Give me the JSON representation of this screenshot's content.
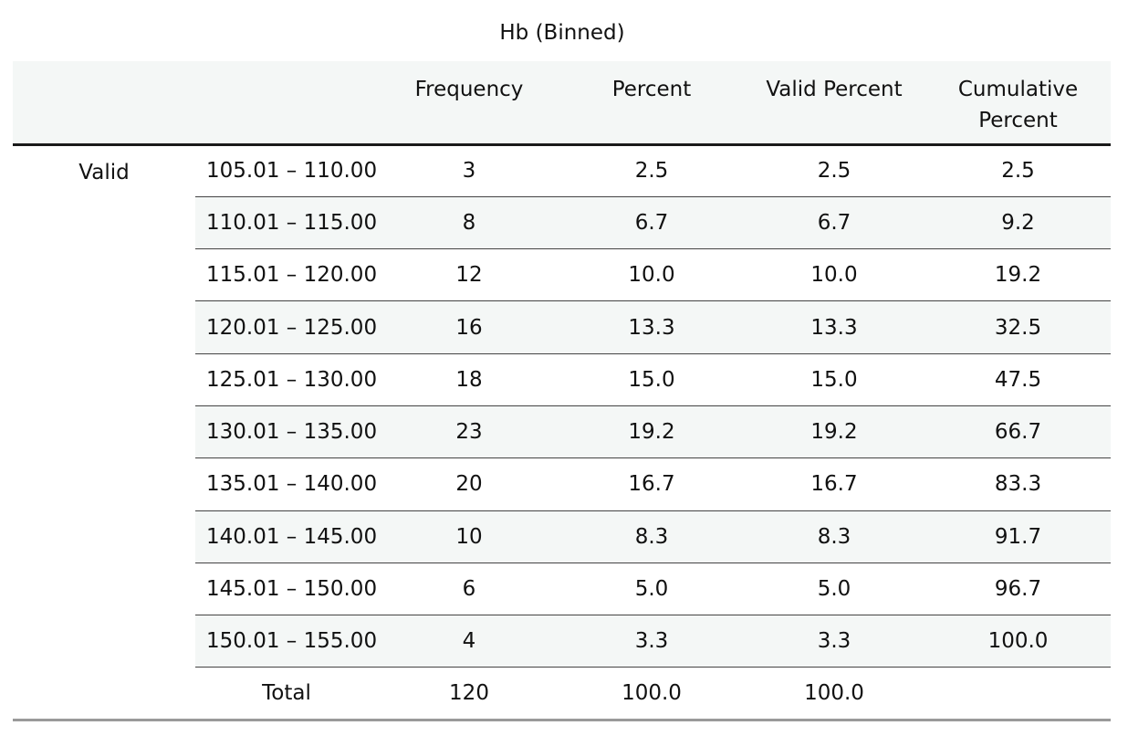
{
  "chart_data": {
    "type": "table",
    "title": "Hb (Binned)",
    "columns": [
      "",
      "",
      "Frequency",
      "Percent",
      "Valid Percent",
      "Cumulative Percent"
    ],
    "column_lines": {
      "frequency": "Frequency",
      "percent": "Percent",
      "valid_percent": "Valid Percent",
      "cumulative_line1": "Cumulative",
      "cumulative_line2": "Percent"
    },
    "group_label": "Valid",
    "rows": [
      {
        "range": "105.01 – 110.00",
        "frequency": "3",
        "percent": "2.5",
        "valid_percent": "2.5",
        "cumulative_percent": "2.5"
      },
      {
        "range": "110.01 – 115.00",
        "frequency": "8",
        "percent": "6.7",
        "valid_percent": "6.7",
        "cumulative_percent": "9.2"
      },
      {
        "range": "115.01 – 120.00",
        "frequency": "12",
        "percent": "10.0",
        "valid_percent": "10.0",
        "cumulative_percent": "19.2"
      },
      {
        "range": "120.01 – 125.00",
        "frequency": "16",
        "percent": "13.3",
        "valid_percent": "13.3",
        "cumulative_percent": "32.5"
      },
      {
        "range": "125.01 – 130.00",
        "frequency": "18",
        "percent": "15.0",
        "valid_percent": "15.0",
        "cumulative_percent": "47.5"
      },
      {
        "range": "130.01 – 135.00",
        "frequency": "23",
        "percent": "19.2",
        "valid_percent": "19.2",
        "cumulative_percent": "66.7"
      },
      {
        "range": "135.01 – 140.00",
        "frequency": "20",
        "percent": "16.7",
        "valid_percent": "16.7",
        "cumulative_percent": "83.3"
      },
      {
        "range": "140.01 – 145.00",
        "frequency": "10",
        "percent": "8.3",
        "valid_percent": "8.3",
        "cumulative_percent": "91.7"
      },
      {
        "range": "145.01 – 150.00",
        "frequency": "6",
        "percent": "5.0",
        "valid_percent": "5.0",
        "cumulative_percent": "96.7"
      },
      {
        "range": "150.01 – 155.00",
        "frequency": "4",
        "percent": "3.3",
        "valid_percent": "3.3",
        "cumulative_percent": "100.0"
      }
    ],
    "total": {
      "label": "Total",
      "frequency": "120",
      "percent": "100.0",
      "valid_percent": "100.0",
      "cumulative_percent": ""
    },
    "colors": {
      "header_bg": "#f4f7f6",
      "stripe_bg": "#f4f7f6",
      "rule": "#1a1a1a"
    }
  }
}
